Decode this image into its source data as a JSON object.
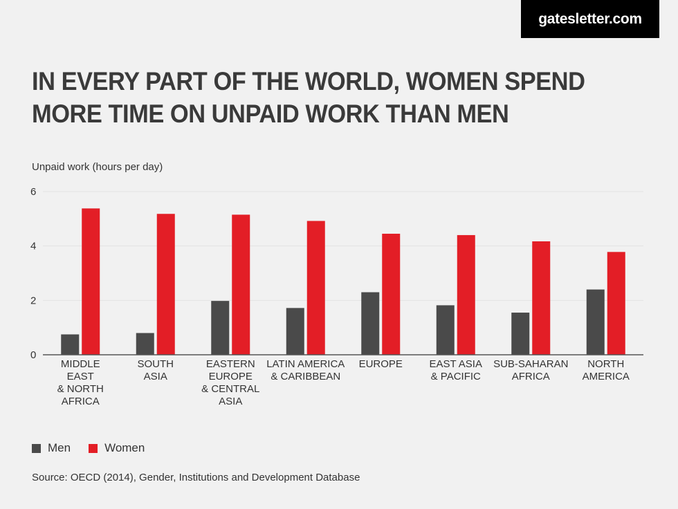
{
  "brand": "gatesletter.com",
  "title": "IN EVERY PART OF THE WORLD, WOMEN SPEND MORE TIME ON UNPAID WORK THAN MEN",
  "source": "Source: OECD (2014), Gender, Institutions and Development Database",
  "colors": {
    "men": "#4a4a4a",
    "women": "#e31e26"
  },
  "chart_data": {
    "type": "bar",
    "title": "IN EVERY PART OF THE WORLD, WOMEN SPEND MORE TIME ON UNPAID WORK THAN MEN",
    "ylabel": "Unpaid work (hours per day)",
    "xlabel": "",
    "ylim": [
      0,
      6
    ],
    "yticks": [
      0,
      2,
      4,
      6
    ],
    "grid": true,
    "legend": "bottom-left",
    "categories": [
      [
        "MIDDLE",
        "EAST",
        "& NORTH",
        "AFRICA"
      ],
      [
        "SOUTH",
        "ASIA"
      ],
      [
        "EASTERN",
        "EUROPE",
        "& CENTRAL",
        "ASIA"
      ],
      [
        "LATIN AMERICA",
        "& CARIBBEAN"
      ],
      [
        "EUROPE"
      ],
      [
        "EAST ASIA",
        "& PACIFIC"
      ],
      [
        "SUB-SAHARAN",
        "AFRICA"
      ],
      [
        "NORTH",
        "AMERICA"
      ]
    ],
    "series": [
      {
        "name": "Men",
        "color": "#4a4a4a",
        "values": [
          0.75,
          0.8,
          1.98,
          1.72,
          2.3,
          1.82,
          1.55,
          2.4
        ]
      },
      {
        "name": "Women",
        "color": "#e31e26",
        "values": [
          5.38,
          5.18,
          5.15,
          4.92,
          4.45,
          4.4,
          4.17,
          3.78
        ]
      }
    ]
  }
}
